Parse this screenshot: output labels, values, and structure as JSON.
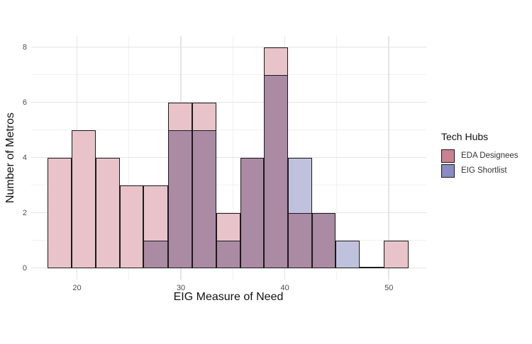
{
  "chart_data": {
    "type": "histogram",
    "title": "",
    "xlabel": "EIG Measure of Need",
    "ylabel": "Number of Metros",
    "x_ticks": [
      20,
      30,
      40,
      50
    ],
    "y_ticks": [
      0,
      2,
      4,
      6,
      8
    ],
    "x_minor_ticks": [
      25,
      35,
      45
    ],
    "y_minor_ticks": [
      1,
      3,
      5,
      7
    ],
    "xlim": [
      15.6,
      53.6
    ],
    "ylim": [
      -0.42,
      8.4
    ],
    "grid": "on",
    "legend": {
      "title": "Tech Hubs",
      "position": "right",
      "entries": [
        {
          "label": "EDA Designees",
          "color": "#ca8191"
        },
        {
          "label": "EIG Shortlist",
          "color": "#8b8cc3"
        }
      ]
    },
    "series": [
      {
        "name": "EDA Designees",
        "fill": "#e8c4ca"
      },
      {
        "name": "EIG Shortlist",
        "fill": "#c0c1dd"
      }
    ],
    "overlap_fill": "#ab8aa4",
    "border_color": "#1a1a1a",
    "bins": [
      {
        "start": 17.2,
        "end": 19.5,
        "eda": 4,
        "eig": 0
      },
      {
        "start": 19.5,
        "end": 21.8,
        "eda": 5,
        "eig": 0
      },
      {
        "start": 21.8,
        "end": 24.1,
        "eda": 4,
        "eig": 0
      },
      {
        "start": 24.1,
        "end": 26.4,
        "eda": 3,
        "eig": 0
      },
      {
        "start": 26.4,
        "end": 28.8,
        "eda": 3,
        "eig": 1
      },
      {
        "start": 28.8,
        "end": 31.1,
        "eda": 6,
        "eig": 5
      },
      {
        "start": 31.1,
        "end": 33.4,
        "eda": 6,
        "eig": 5
      },
      {
        "start": 33.4,
        "end": 35.7,
        "eda": 2,
        "eig": 1
      },
      {
        "start": 35.7,
        "end": 38.0,
        "eda": 4,
        "eig": 4
      },
      {
        "start": 38.0,
        "end": 40.3,
        "eda": 8,
        "eig": 7
      },
      {
        "start": 40.3,
        "end": 42.6,
        "eda": 2,
        "eig": 4
      },
      {
        "start": 42.6,
        "end": 44.9,
        "eda": 2,
        "eig": 2
      },
      {
        "start": 44.9,
        "end": 47.2,
        "eda": 0,
        "eig": 1
      },
      {
        "start": 47.2,
        "end": 49.5,
        "eda": 0,
        "eig": 0
      },
      {
        "start": 49.5,
        "end": 51.9,
        "eda": 1,
        "eig": 0
      }
    ]
  }
}
